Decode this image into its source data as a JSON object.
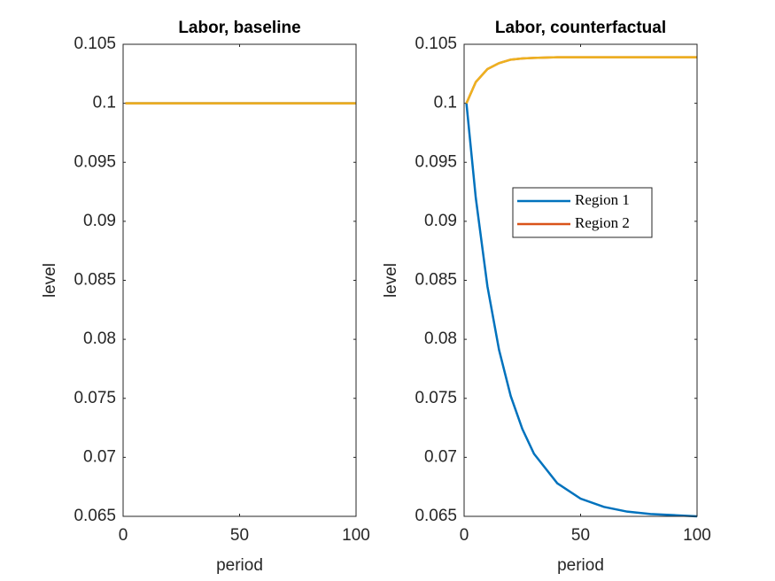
{
  "chart_data": [
    {
      "type": "line",
      "title": "Labor, baseline",
      "xlabel": "period",
      "ylabel": "level",
      "x": [
        1,
        5,
        10,
        15,
        20,
        25,
        30,
        40,
        50,
        60,
        70,
        80,
        90,
        100
      ],
      "series": [
        {
          "color": "#0072bd",
          "values": [
            0.1,
            0.1,
            0.1,
            0.1,
            0.1,
            0.1,
            0.1,
            0.1,
            0.1,
            0.1,
            0.1,
            0.1,
            0.1,
            0.1
          ]
        },
        {
          "color": "#d95319",
          "values": [
            0.1,
            0.1,
            0.1,
            0.1,
            0.1,
            0.1,
            0.1,
            0.1,
            0.1,
            0.1,
            0.1,
            0.1,
            0.1,
            0.1
          ]
        },
        {
          "color": "#edb120",
          "values": [
            0.1,
            0.1,
            0.1,
            0.1,
            0.1,
            0.1,
            0.1,
            0.1,
            0.1,
            0.1,
            0.1,
            0.1,
            0.1,
            0.1
          ]
        }
      ],
      "xlim": [
        0,
        100
      ],
      "xticks": [
        0,
        50,
        100
      ],
      "ylim": [
        0.065,
        0.105
      ],
      "yticks": [
        0.065,
        0.07,
        0.075,
        0.08,
        0.085,
        0.09,
        0.095,
        0.1,
        0.105
      ]
    },
    {
      "type": "line",
      "title": "Labor, counterfactual",
      "xlabel": "period",
      "ylabel": "level",
      "x": [
        1,
        5,
        10,
        15,
        20,
        25,
        30,
        40,
        50,
        60,
        70,
        80,
        90,
        100
      ],
      "series": [
        {
          "name": "Region 1",
          "color": "#0072bd",
          "values": [
            0.1,
            0.092,
            0.0845,
            0.0791,
            0.0752,
            0.0724,
            0.0703,
            0.0678,
            0.0665,
            0.0658,
            0.0654,
            0.0652,
            0.0651,
            0.065
          ]
        },
        {
          "name": "Region 2",
          "color": "#d95319",
          "values": [
            0.1,
            0.1018,
            0.1029,
            0.1034,
            0.1037,
            0.1038,
            0.10385,
            0.1039,
            0.1039,
            0.1039,
            0.1039,
            0.1039,
            0.1039,
            0.1039
          ]
        },
        {
          "color": "#edb120",
          "values": [
            0.1,
            0.1018,
            0.1029,
            0.1034,
            0.1037,
            0.1038,
            0.10385,
            0.1039,
            0.1039,
            0.1039,
            0.1039,
            0.1039,
            0.1039,
            0.1039
          ]
        }
      ],
      "xlim": [
        0,
        100
      ],
      "xticks": [
        0,
        50,
        100
      ],
      "ylim": [
        0.065,
        0.105
      ],
      "yticks": [
        0.065,
        0.07,
        0.075,
        0.08,
        0.085,
        0.09,
        0.095,
        0.1,
        0.105
      ]
    }
  ]
}
